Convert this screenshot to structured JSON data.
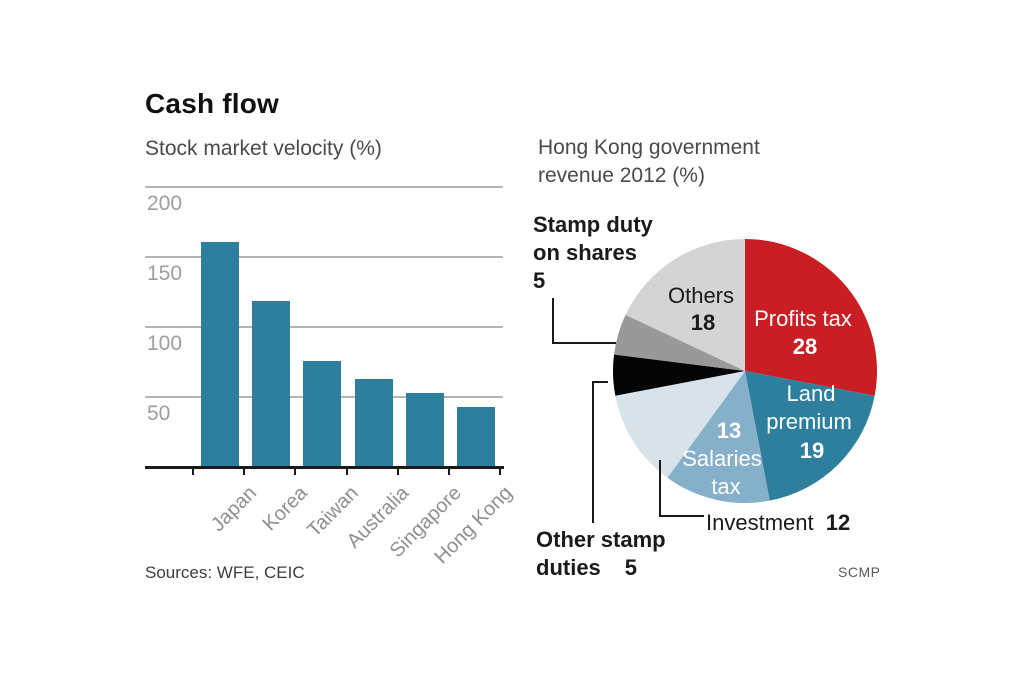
{
  "header": {
    "title": "Cash flow"
  },
  "chart_data": [
    {
      "type": "bar",
      "title": "Stock market velocity (%)",
      "categories": [
        "Japan",
        "Korea",
        "Taiwan",
        "Australia",
        "Singapore",
        "Hong Kong"
      ],
      "values": [
        160,
        118,
        75,
        62,
        52,
        42
      ],
      "yticks": [
        200,
        150,
        100,
        50
      ],
      "ylim": [
        0,
        215
      ],
      "grid": true,
      "bar_color": "#2e7f9e",
      "axis_color": "#1a1a1a",
      "source": "Sources: WFE, CEIC"
    },
    {
      "type": "pie",
      "title": "Hong Kong government revenue 2012 (%)",
      "title_lines": [
        "Hong Kong government",
        "revenue 2012 (%)"
      ],
      "start_angle_deg": 0,
      "direction": "clockwise",
      "slices": [
        {
          "label": "Profits tax",
          "value": 28,
          "color": "#c81e24"
        },
        {
          "label": "Land premium",
          "value": 19,
          "color": "#2e7f9e"
        },
        {
          "label": "Salaries tax",
          "value": 13,
          "color": "#86afc9"
        },
        {
          "label": "Investment",
          "value": 12,
          "color": "#d8e2e9"
        },
        {
          "label": "Other stamp duties",
          "value": 5,
          "color": "#050505"
        },
        {
          "label": "Stamp duty on shares",
          "value": 5,
          "color": "#999999"
        },
        {
          "label": "Others",
          "value": 18,
          "color": "#d4d4d4"
        }
      ],
      "credit": "SCMP"
    }
  ],
  "pie_labels": {
    "others_name": "Others",
    "others_value": "18",
    "profits_name": "Profits tax",
    "profits_value": "28",
    "land_line1": "Land",
    "land_line2": "premium",
    "land_value": "19",
    "salaries_value": "13",
    "salaries_line1": "Salaries",
    "salaries_line2": "tax",
    "investment_name": "Investment",
    "investment_value": "12",
    "other_stamp_line1": "Other stamp",
    "other_stamp_line2": "duties",
    "other_stamp_value": "5",
    "stamp_shares_line1": "Stamp duty",
    "stamp_shares_line2": "on shares",
    "stamp_shares_value": "5"
  }
}
